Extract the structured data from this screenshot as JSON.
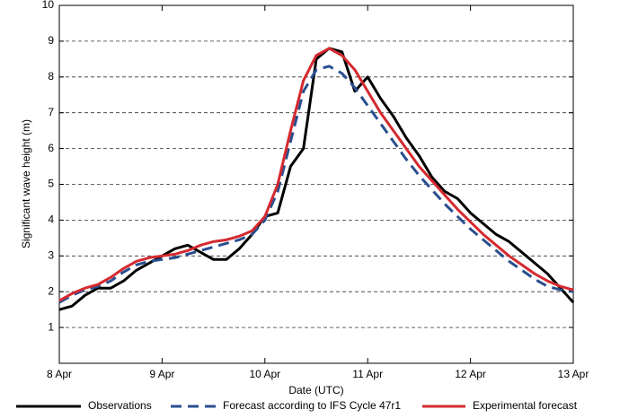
{
  "chart_data": {
    "type": "line",
    "y_label": "Significant wave height (m)",
    "x_label": "Date (UTC)",
    "xlim": [
      0,
      5
    ],
    "xticks": [
      {
        "value": 0,
        "label": "8 Apr"
      },
      {
        "value": 1,
        "label": "9 Apr"
      },
      {
        "value": 2,
        "label": "10 Apr"
      },
      {
        "value": 3,
        "label": "11 Apr"
      },
      {
        "value": 4,
        "label": "12 Apr"
      },
      {
        "value": 5,
        "label": "13 Apr"
      }
    ],
    "ylim": [
      0,
      10
    ],
    "yticks": [
      1,
      2,
      3,
      4,
      5,
      6,
      7,
      8,
      9,
      10
    ],
    "grid": true,
    "legend": "bottom",
    "x": [
      0,
      0.125,
      0.25,
      0.375,
      0.5,
      0.625,
      0.75,
      0.875,
      1,
      1.125,
      1.25,
      1.375,
      1.5,
      1.625,
      1.75,
      1.875,
      2,
      2.125,
      2.25,
      2.375,
      2.5,
      2.625,
      2.75,
      2.875,
      3,
      3.125,
      3.25,
      3.375,
      3.5,
      3.625,
      3.75,
      3.875,
      4,
      4.125,
      4.25,
      4.375,
      4.5,
      4.625,
      4.75,
      4.875,
      5
    ],
    "series": [
      {
        "name": "Observations",
        "color": "#000000",
        "dashed": false,
        "values": [
          1.5,
          1.6,
          1.9,
          2.1,
          2.1,
          2.3,
          2.6,
          2.8,
          3.0,
          3.2,
          3.3,
          3.1,
          2.9,
          2.9,
          3.2,
          3.6,
          4.1,
          4.2,
          5.5,
          6.0,
          8.5,
          8.8,
          8.7,
          7.6,
          8.0,
          7.4,
          6.9,
          6.3,
          5.8,
          5.2,
          4.8,
          4.6,
          4.2,
          3.9,
          3.6,
          3.4,
          3.1,
          2.8,
          2.5,
          2.1,
          1.7
        ]
      },
      {
        "name": "Forecast according to IFS Cycle 47r1",
        "color": "#2a4f8f",
        "dashed": true,
        "values": [
          1.7,
          1.9,
          2.05,
          2.15,
          2.3,
          2.55,
          2.75,
          2.85,
          2.9,
          2.95,
          3.05,
          3.15,
          3.25,
          3.35,
          3.45,
          3.6,
          4.0,
          4.8,
          6.2,
          7.6,
          8.2,
          8.3,
          8.1,
          7.7,
          7.2,
          6.7,
          6.2,
          5.7,
          5.25,
          4.85,
          4.45,
          4.1,
          3.75,
          3.45,
          3.15,
          2.85,
          2.6,
          2.35,
          2.15,
          2.05,
          2.0
        ]
      },
      {
        "name": "Experimental forecast",
        "color": "#d42a2f",
        "dashed": false,
        "values": [
          1.75,
          1.95,
          2.1,
          2.2,
          2.4,
          2.65,
          2.85,
          2.95,
          3.0,
          3.05,
          3.15,
          3.3,
          3.4,
          3.45,
          3.55,
          3.7,
          4.1,
          5.0,
          6.5,
          7.9,
          8.6,
          8.8,
          8.6,
          8.2,
          7.6,
          7.0,
          6.5,
          6.0,
          5.5,
          5.1,
          4.7,
          4.3,
          3.95,
          3.6,
          3.3,
          3.0,
          2.75,
          2.5,
          2.3,
          2.15,
          2.05
        ]
      }
    ]
  }
}
